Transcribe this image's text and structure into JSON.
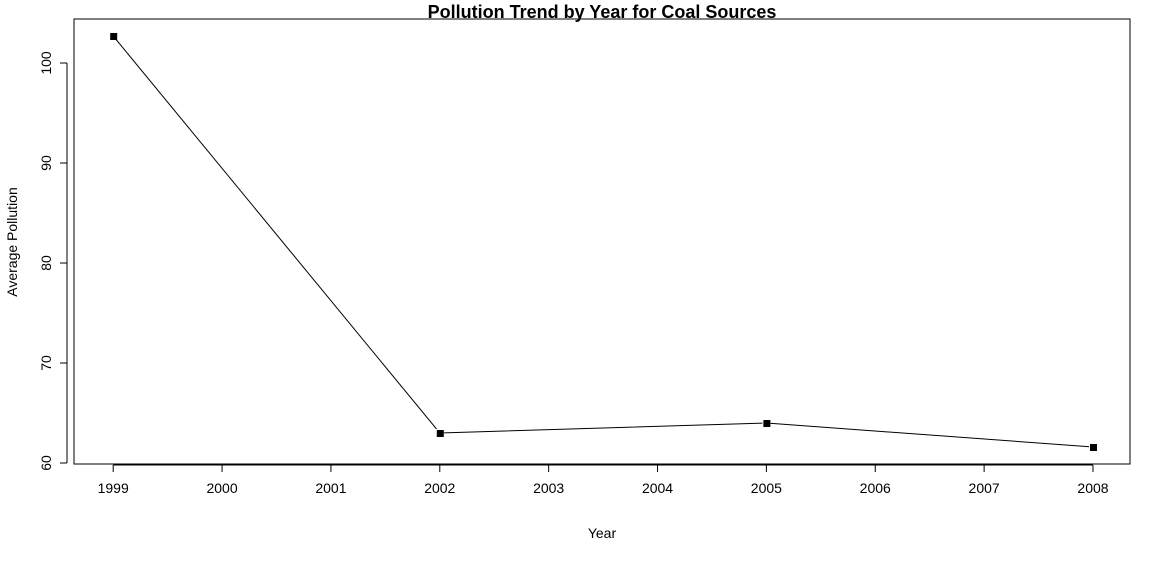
{
  "chart_data": {
    "type": "line",
    "title": "Pollution Trend by Year for Coal Sources",
    "xlabel": "Year",
    "ylabel": "Average Pollution",
    "x": [
      1999,
      2002,
      2005,
      2008
    ],
    "series": [
      {
        "values": [
          102.7,
          63.0,
          64.0,
          61.6
        ]
      }
    ],
    "xticks": [
      "1999",
      "2000",
      "2001",
      "2002",
      "2003",
      "2004",
      "2005",
      "2006",
      "2007",
      "2008"
    ],
    "yticks": [
      "60",
      "70",
      "80",
      "90",
      "100"
    ],
    "xlim": [
      1998.64,
      2008.34
    ],
    "ylim": [
      59.9,
      104.4
    ],
    "grid": false,
    "marker": "square",
    "line_color": "#000000"
  }
}
